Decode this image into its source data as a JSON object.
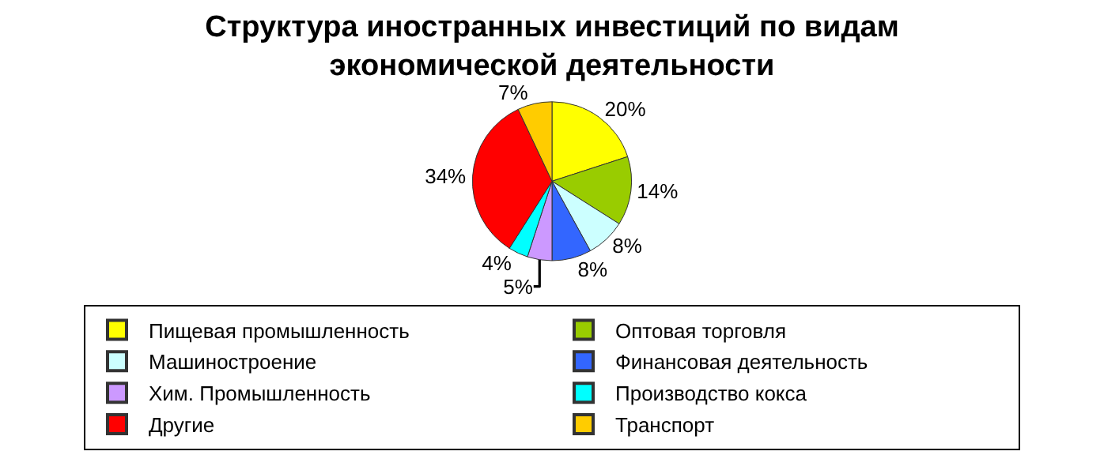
{
  "chart_data": {
    "type": "pie",
    "title": "Структура иностранных инвестиций по видам\nэкономической деятельности",
    "categories": [
      "Пищевая промышленность",
      "Оптовая торговля",
      "Машиностроение",
      "Финансовая деятельность",
      "Хим. Промышленность",
      "Производство кокса",
      "Другие",
      "Транспорт"
    ],
    "values": [
      20,
      14,
      8,
      8,
      5,
      4,
      34,
      7
    ],
    "value_labels": [
      "20%",
      "14%",
      "8%",
      "8%",
      "5%",
      "4%",
      "34%",
      "7%"
    ],
    "colors": [
      "#ffff00",
      "#99cc00",
      "#ccffff",
      "#3366ff",
      "#cc99ff",
      "#00ffff",
      "#ff0000",
      "#ffcc00"
    ],
    "legend": "bottom"
  }
}
